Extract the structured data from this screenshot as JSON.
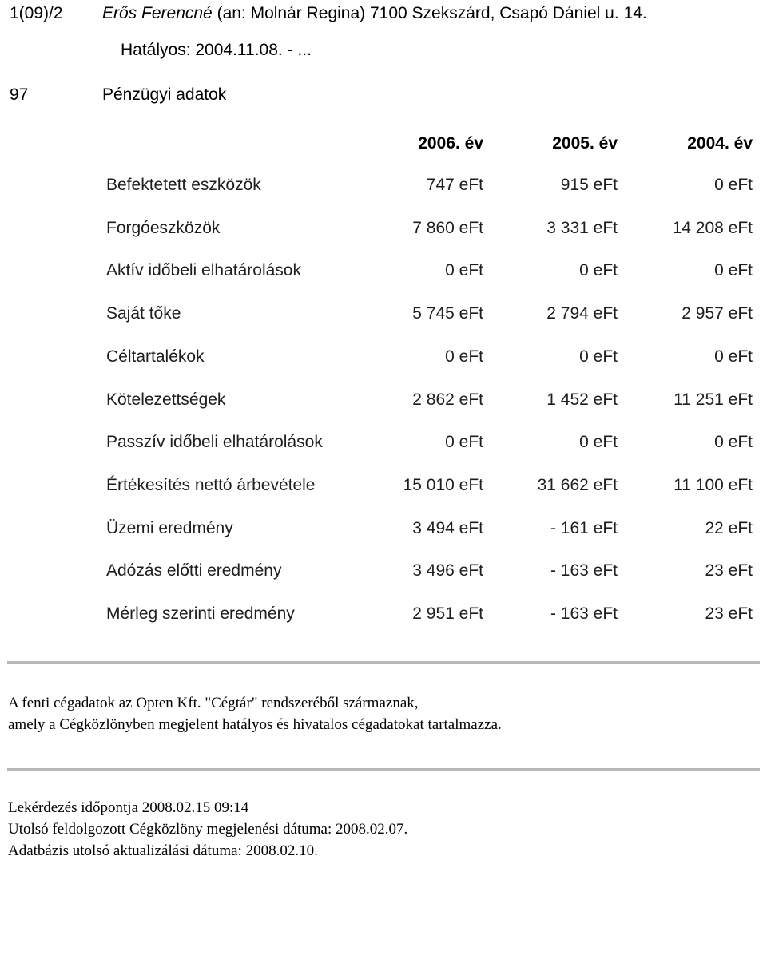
{
  "header": {
    "entry_code": "1(09)/2",
    "name": "Erős Ferencné",
    "rest": "(an: Molnár Regina) 7100 Szekszárd, Csapó Dániel u. 14.",
    "validity": "Hatályos: 2004.11.08. - ..."
  },
  "section": {
    "number": "97",
    "title": "Pénzügyi adatok"
  },
  "table": {
    "columns": [
      "2006. év",
      "2005. év",
      "2004. év"
    ],
    "rows": [
      {
        "label": "Befektetett eszközök",
        "values": [
          "747 eFt",
          "915 eFt",
          "0 eFt"
        ]
      },
      {
        "label": "Forgóeszközök",
        "values": [
          "7 860 eFt",
          "3 331 eFt",
          "14 208 eFt"
        ]
      },
      {
        "label": "Aktív időbeli elhatárolások",
        "values": [
          "0 eFt",
          "0 eFt",
          "0 eFt"
        ]
      },
      {
        "label": "Saját tőke",
        "values": [
          "5 745 eFt",
          "2 794 eFt",
          "2 957 eFt"
        ]
      },
      {
        "label": "Céltartalékok",
        "values": [
          "0 eFt",
          "0 eFt",
          "0 eFt"
        ]
      },
      {
        "label": "Kötelezettségek",
        "values": [
          "2 862 eFt",
          "1 452 eFt",
          "11 251 eFt"
        ]
      },
      {
        "label": "Passzív időbeli elhatárolások",
        "values": [
          "0 eFt",
          "0 eFt",
          "0 eFt"
        ]
      },
      {
        "label": "Értékesítés nettó árbevétele",
        "values": [
          "15 010 eFt",
          "31 662 eFt",
          "11 100 eFt"
        ]
      },
      {
        "label": "Üzemi eredmény",
        "values": [
          "3 494 eFt",
          "- 161 eFt",
          "22 eFt"
        ]
      },
      {
        "label": "Adózás előtti eredmény",
        "values": [
          "3 496 eFt",
          "- 163 eFt",
          "23 eFt"
        ]
      },
      {
        "label": "Mérleg szerinti eredmény",
        "values": [
          "2 951 eFt",
          "- 163 eFt",
          "23 eFt"
        ]
      }
    ]
  },
  "footer": {
    "source_line1": "A fenti cégadatok az Opten Kft. \"Cégtár\" rendszeréből származnak,",
    "source_line2": "amely a Cégközlönyben megjelent hatályos és hivatalos cégadatokat tartalmazza.",
    "query_time": "Lekérdezés időpontja 2008.02.15 09:14",
    "last_gazette": "Utolsó feldolgozott Cégközlöny megjelenési dátuma: 2008.02.07.",
    "db_update": "Adatbázis utolsó aktualizálási dátuma: 2008.02.10."
  }
}
